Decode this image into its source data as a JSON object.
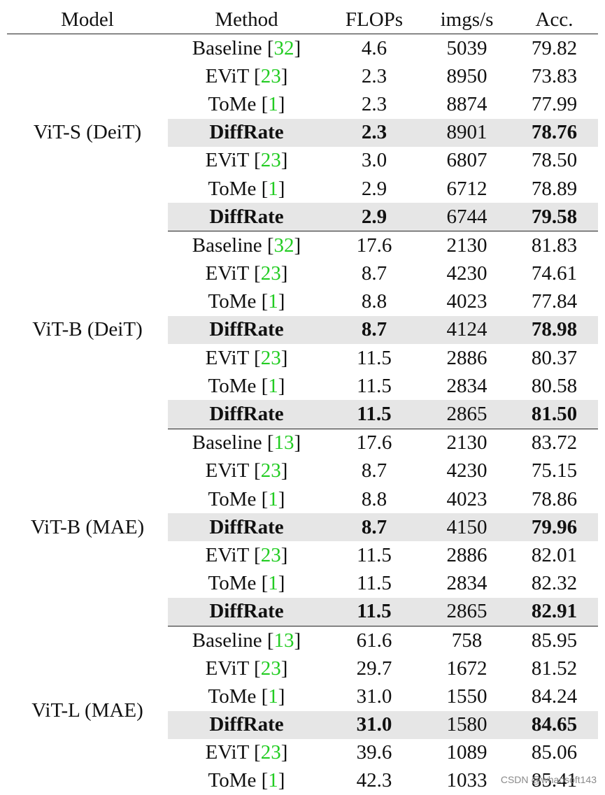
{
  "headers": {
    "model": "Model",
    "method": "Method",
    "flops": "FLOPs",
    "imgs": "imgs/s",
    "acc": "Acc."
  },
  "groups": [
    {
      "model": "ViT-S (DeiT)",
      "rows": [
        {
          "method": "Baseline",
          "ref": "32",
          "flops": "4.6",
          "imgs": "5039",
          "acc": "79.82",
          "highlight": false
        },
        {
          "method": "EViT",
          "ref": "23",
          "flops": "2.3",
          "imgs": "8950",
          "acc": "73.83",
          "highlight": false
        },
        {
          "method": "ToMe",
          "ref": "1",
          "flops": "2.3",
          "imgs": "8874",
          "acc": "77.99",
          "highlight": false
        },
        {
          "method": "DiffRate",
          "ref": "",
          "flops": "2.3",
          "imgs": "8901",
          "acc": "78.76",
          "highlight": true
        },
        {
          "method": "EViT",
          "ref": "23",
          "flops": "3.0",
          "imgs": "6807",
          "acc": "78.50",
          "highlight": false
        },
        {
          "method": "ToMe",
          "ref": "1",
          "flops": "2.9",
          "imgs": "6712",
          "acc": "78.89",
          "highlight": false
        },
        {
          "method": "DiffRate",
          "ref": "",
          "flops": "2.9",
          "imgs": "6744",
          "acc": "79.58",
          "highlight": true
        }
      ]
    },
    {
      "model": "ViT-B (DeiT)",
      "rows": [
        {
          "method": "Baseline",
          "ref": "32",
          "flops": "17.6",
          "imgs": "2130",
          "acc": "81.83",
          "highlight": false
        },
        {
          "method": "EViT",
          "ref": "23",
          "flops": "8.7",
          "imgs": "4230",
          "acc": "74.61",
          "highlight": false
        },
        {
          "method": "ToMe",
          "ref": "1",
          "flops": "8.8",
          "imgs": "4023",
          "acc": "77.84",
          "highlight": false
        },
        {
          "method": "DiffRate",
          "ref": "",
          "flops": "8.7",
          "imgs": "4124",
          "acc": "78.98",
          "highlight": true
        },
        {
          "method": "EViT",
          "ref": "23",
          "flops": "11.5",
          "imgs": "2886",
          "acc": "80.37",
          "highlight": false
        },
        {
          "method": "ToMe",
          "ref": "1",
          "flops": "11.5",
          "imgs": "2834",
          "acc": "80.58",
          "highlight": false
        },
        {
          "method": "DiffRate",
          "ref": "",
          "flops": "11.5",
          "imgs": "2865",
          "acc": "81.50",
          "highlight": true
        }
      ]
    },
    {
      "model": "ViT-B (MAE)",
      "rows": [
        {
          "method": "Baseline",
          "ref": "13",
          "flops": "17.6",
          "imgs": "2130",
          "acc": "83.72",
          "highlight": false
        },
        {
          "method": "EViT",
          "ref": "23",
          "flops": "8.7",
          "imgs": "4230",
          "acc": "75.15",
          "highlight": false
        },
        {
          "method": "ToMe",
          "ref": "1",
          "flops": "8.8",
          "imgs": "4023",
          "acc": "78.86",
          "highlight": false
        },
        {
          "method": "DiffRate",
          "ref": "",
          "flops": "8.7",
          "imgs": "4150",
          "acc": "79.96",
          "highlight": true
        },
        {
          "method": "EViT",
          "ref": "23",
          "flops": "11.5",
          "imgs": "2886",
          "acc": "82.01",
          "highlight": false
        },
        {
          "method": "ToMe",
          "ref": "1",
          "flops": "11.5",
          "imgs": "2834",
          "acc": "82.32",
          "highlight": false
        },
        {
          "method": "DiffRate",
          "ref": "",
          "flops": "11.5",
          "imgs": "2865",
          "acc": "82.91",
          "highlight": true
        }
      ]
    },
    {
      "model": "ViT-L (MAE)",
      "rows": [
        {
          "method": "Baseline",
          "ref": "13",
          "flops": "61.6",
          "imgs": "758",
          "acc": "85.95",
          "highlight": false
        },
        {
          "method": "EViT",
          "ref": "23",
          "flops": "29.7",
          "imgs": "1672",
          "acc": "81.52",
          "highlight": false
        },
        {
          "method": "ToMe",
          "ref": "1",
          "flops": "31.0",
          "imgs": "1550",
          "acc": "84.24",
          "highlight": false
        },
        {
          "method": "DiffRate",
          "ref": "",
          "flops": "31.0",
          "imgs": "1580",
          "acc": "84.65",
          "highlight": true
        },
        {
          "method": "EViT",
          "ref": "23",
          "flops": "39.6",
          "imgs": "1089",
          "acc": "85.06",
          "highlight": false
        },
        {
          "method": "ToMe",
          "ref": "1",
          "flops": "42.3",
          "imgs": "1033",
          "acc": "85.41",
          "highlight": false
        }
      ]
    }
  ],
  "watermark": "CSDN @whaosoft143"
}
